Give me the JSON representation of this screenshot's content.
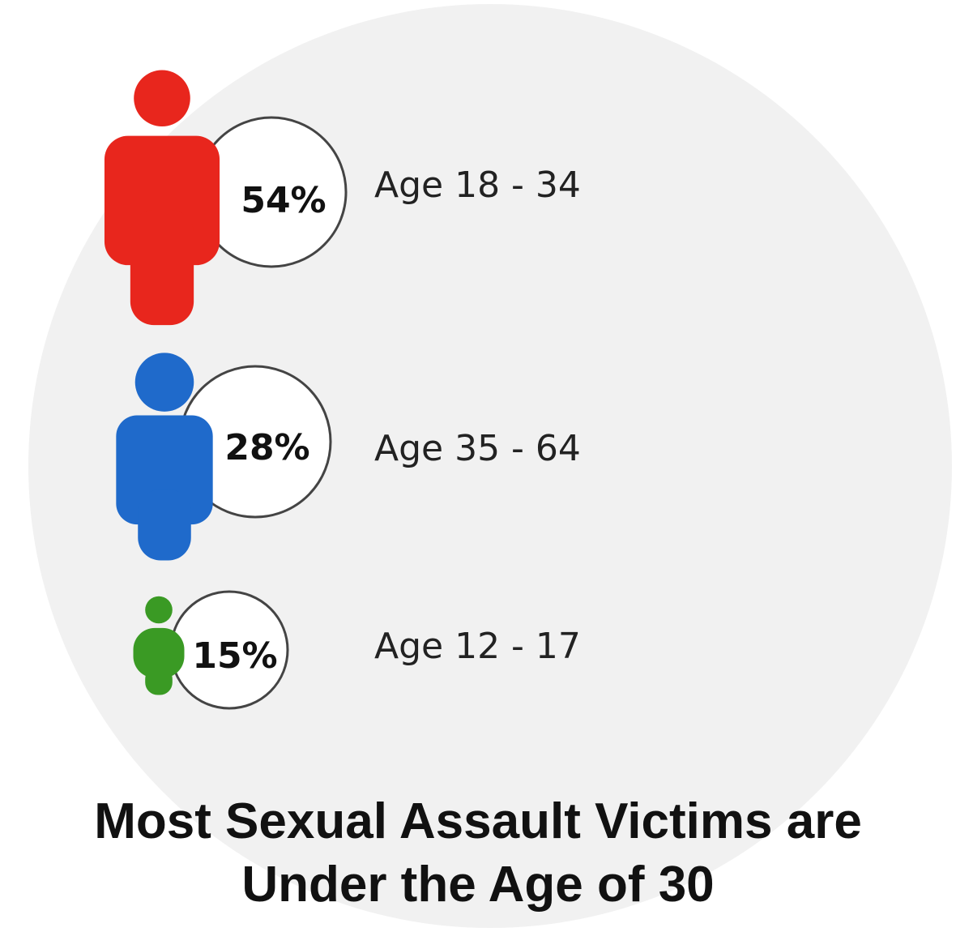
{
  "chart_data": {
    "type": "pictogram",
    "title_lines": [
      "Most Sexual Assault Victims are",
      "Under the Age of 30"
    ],
    "items": [
      {
        "value": 54,
        "value_label": "54%",
        "category": "Age 18 - 34",
        "color": "#e8261d"
      },
      {
        "value": 28,
        "value_label": "28%",
        "category": "Age 35 - 64",
        "color": "#1f6acb"
      },
      {
        "value": 15,
        "value_label": "15%",
        "category": "Age 12 - 17",
        "color": "#3a9a24"
      }
    ]
  },
  "colors": {
    "background_disc": "#f1f1f1",
    "bubble_fill": "#ffffff",
    "bubble_stroke": "#444444"
  }
}
